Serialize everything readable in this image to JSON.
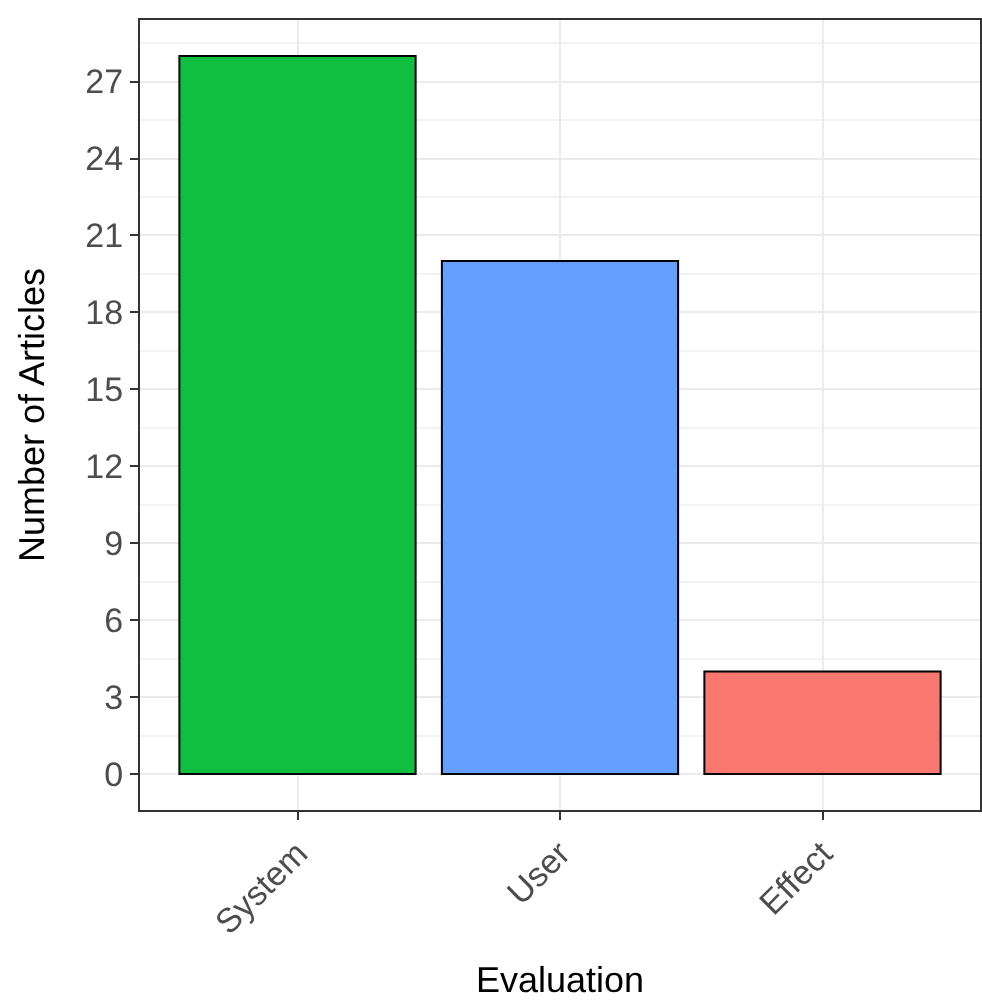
{
  "chart_data": {
    "type": "bar",
    "xlabel": "Evaluation",
    "ylabel": "Number of Articles",
    "categories": [
      "System",
      "User",
      "Effect"
    ],
    "values": [
      28,
      20,
      4
    ],
    "colors": [
      "#10bf40",
      "#649eff",
      "#f8786f"
    ],
    "ylim": [
      -1.4,
      29.4
    ],
    "yticks": [
      0,
      3,
      6,
      9,
      12,
      15,
      18,
      21,
      24,
      27
    ],
    "grid": true
  }
}
